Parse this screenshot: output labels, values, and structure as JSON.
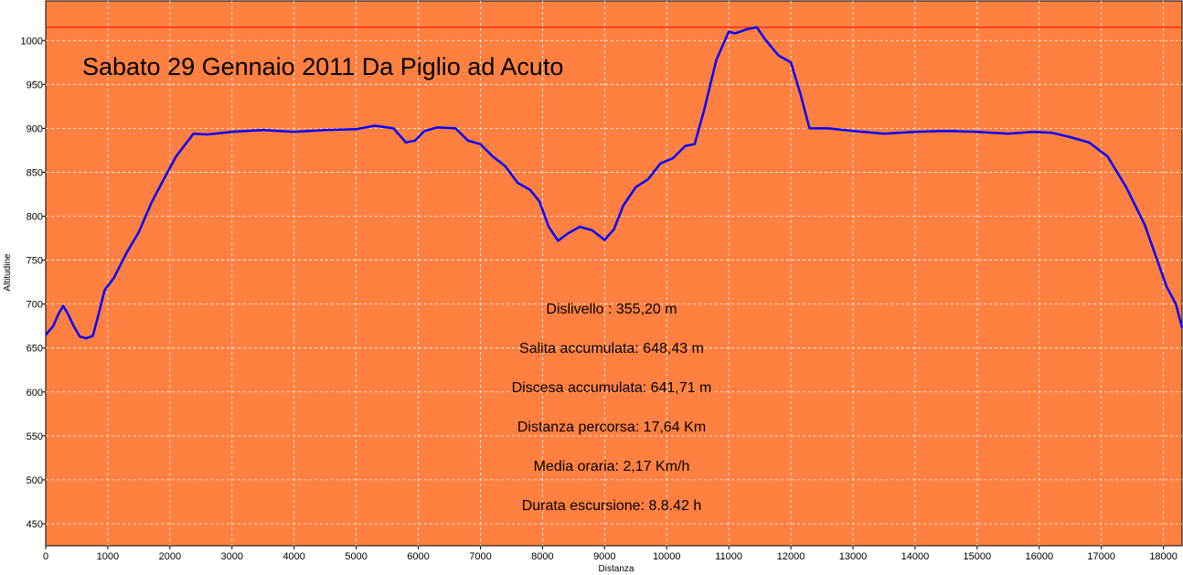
{
  "colors": {
    "plot_background": "#ff8040",
    "line": "#0000ff",
    "max_line": "#ff0000",
    "grid": "#ffffff"
  },
  "chart_data": {
    "type": "line",
    "title": "Sabato 29 Gennaio 2011 Da Piglio ad Acuto",
    "xlabel": "Distanza",
    "ylabel": "Altitudine",
    "xlim": [
      0,
      18300
    ],
    "ylim": [
      425,
      1045
    ],
    "grid": true,
    "x_ticks": [
      0,
      1000,
      2000,
      3000,
      4000,
      5000,
      6000,
      7000,
      8000,
      9000,
      10000,
      11000,
      12000,
      13000,
      14000,
      15000,
      16000,
      17000,
      18000
    ],
    "y_ticks": [
      450,
      500,
      550,
      600,
      650,
      700,
      750,
      800,
      850,
      900,
      950,
      1000
    ],
    "max_line_value": 1015,
    "annotations": [
      "Dislivello : 355,20 m",
      "Salita accumulata: 648,43 m",
      "Discesa accumulata: 641,71 m",
      "Distanza percorsa: 17,64 Km",
      "Media oraria: 2,17 Km/h",
      "Durata escursione: 8.8.42 h"
    ],
    "series": [
      {
        "points": [
          [
            0,
            665
          ],
          [
            120,
            675
          ],
          [
            200,
            688
          ],
          [
            280,
            698
          ],
          [
            350,
            690
          ],
          [
            450,
            675
          ],
          [
            550,
            663
          ],
          [
            650,
            661
          ],
          [
            760,
            664
          ],
          [
            850,
            688
          ],
          [
            950,
            716
          ],
          [
            1100,
            730
          ],
          [
            1300,
            758
          ],
          [
            1500,
            782
          ],
          [
            1700,
            815
          ],
          [
            1900,
            842
          ],
          [
            2100,
            868
          ],
          [
            2250,
            882
          ],
          [
            2380,
            894
          ],
          [
            2600,
            893
          ],
          [
            3000,
            896
          ],
          [
            3500,
            898
          ],
          [
            4000,
            896
          ],
          [
            4500,
            898
          ],
          [
            5000,
            899
          ],
          [
            5300,
            903
          ],
          [
            5600,
            900
          ],
          [
            5800,
            884
          ],
          [
            5950,
            886
          ],
          [
            6100,
            897
          ],
          [
            6300,
            901
          ],
          [
            6600,
            900
          ],
          [
            6800,
            886
          ],
          [
            7000,
            882
          ],
          [
            7200,
            868
          ],
          [
            7400,
            857
          ],
          [
            7600,
            838
          ],
          [
            7800,
            830
          ],
          [
            7950,
            817
          ],
          [
            8100,
            788
          ],
          [
            8250,
            772
          ],
          [
            8400,
            780
          ],
          [
            8600,
            788
          ],
          [
            8800,
            784
          ],
          [
            9000,
            773
          ],
          [
            9150,
            785
          ],
          [
            9300,
            812
          ],
          [
            9500,
            833
          ],
          [
            9700,
            842
          ],
          [
            9900,
            860
          ],
          [
            10100,
            866
          ],
          [
            10300,
            880
          ],
          [
            10450,
            882
          ],
          [
            10600,
            920
          ],
          [
            10800,
            978
          ],
          [
            11000,
            1010
          ],
          [
            11100,
            1008
          ],
          [
            11300,
            1013
          ],
          [
            11450,
            1015
          ],
          [
            11600,
            1000
          ],
          [
            11800,
            983
          ],
          [
            12000,
            975
          ],
          [
            12150,
            940
          ],
          [
            12300,
            900
          ],
          [
            12600,
            900
          ],
          [
            13000,
            897
          ],
          [
            13500,
            894
          ],
          [
            14000,
            896
          ],
          [
            14500,
            897
          ],
          [
            15000,
            896
          ],
          [
            15500,
            894
          ],
          [
            15900,
            896
          ],
          [
            16200,
            895
          ],
          [
            16500,
            890
          ],
          [
            16800,
            884
          ],
          [
            17100,
            868
          ],
          [
            17400,
            833
          ],
          [
            17700,
            790
          ],
          [
            17900,
            750
          ],
          [
            18050,
            720
          ],
          [
            18200,
            700
          ],
          [
            18300,
            673
          ]
        ]
      }
    ]
  }
}
